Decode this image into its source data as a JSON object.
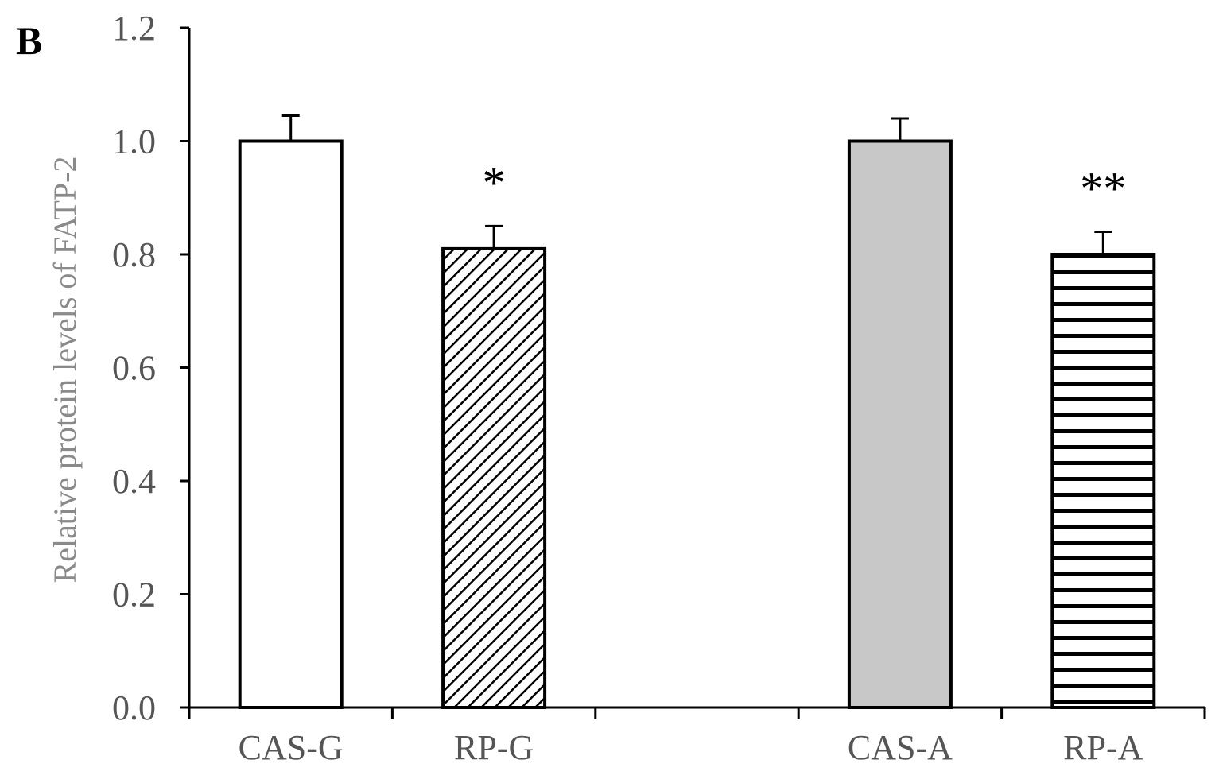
{
  "panel_label": "B",
  "chart_data": {
    "type": "bar",
    "title": "",
    "xlabel": "",
    "ylabel": "Relative protein levels of FATP-2",
    "ylim": [
      0,
      1.2
    ],
    "yticks": [
      "0.0",
      "0.2",
      "0.4",
      "0.6",
      "0.8",
      "1.0",
      "1.2"
    ],
    "grid": false,
    "categories": [
      "CAS-G",
      "RP-G",
      "",
      "CAS-A",
      "RP-A"
    ],
    "values": [
      1.0,
      0.81,
      null,
      1.0,
      0.8
    ],
    "error": [
      0.045,
      0.04,
      null,
      0.04,
      0.04
    ],
    "significance": [
      "",
      "*",
      "",
      "",
      "**"
    ],
    "fills": [
      "white",
      "diagonal-hatch",
      "",
      "light-gray",
      "horizontal-stripes"
    ],
    "colors": {
      "axis": "#000000",
      "bar_gray": "#c8c8c8",
      "text": "#555555"
    }
  }
}
